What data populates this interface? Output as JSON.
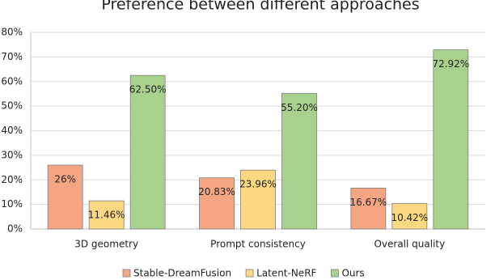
{
  "chart_data": {
    "type": "bar",
    "title": "Preference between different approaches",
    "categories": [
      "3D geometry",
      "Prompt consistency",
      "Overall quality"
    ],
    "series": [
      {
        "name": "Stable-DreamFusion",
        "color": "#f4a582",
        "values": [
          26,
          20.83,
          16.67
        ],
        "value_labels": [
          "26%",
          "20.83%",
          "16.67%"
        ]
      },
      {
        "name": "Latent-NeRF",
        "color": "#fdd882",
        "values": [
          11.46,
          23.96,
          10.42
        ],
        "value_labels": [
          "11.46%",
          "23.96%",
          "10.42%"
        ]
      },
      {
        "name": "Ours",
        "color": "#a9d18e",
        "values": [
          62.5,
          55.2,
          72.92
        ],
        "value_labels": [
          "62.50%",
          "55.20%",
          "72.92%"
        ]
      }
    ],
    "ylim": [
      0,
      80
    ],
    "yticks": [
      {
        "value": 0,
        "label": "0%"
      },
      {
        "value": 10,
        "label": "10%"
      },
      {
        "value": 20,
        "label": "20%"
      },
      {
        "value": 30,
        "label": "30%"
      },
      {
        "value": 40,
        "label": "40%"
      },
      {
        "value": 50,
        "label": "50%"
      },
      {
        "value": 60,
        "label": "60%"
      },
      {
        "value": 70,
        "label": "70%"
      },
      {
        "value": 80,
        "label": "80%"
      }
    ],
    "grid": true
  }
}
